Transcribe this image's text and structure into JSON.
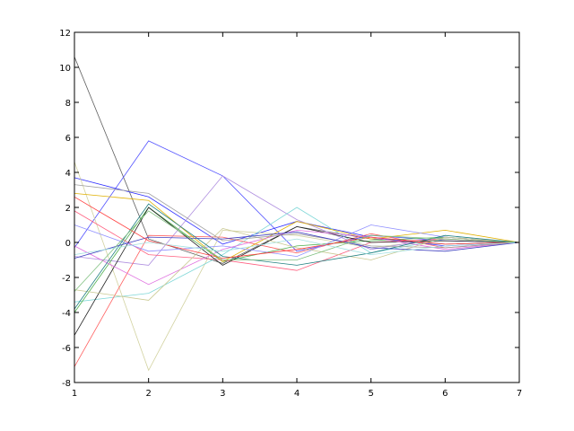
{
  "chart_data": {
    "type": "line",
    "title": "",
    "xlabel": "",
    "ylabel": "",
    "x": [
      1,
      2,
      3,
      4,
      5,
      6,
      7
    ],
    "xlim": [
      1,
      7
    ],
    "ylim": [
      -8,
      12
    ],
    "xticks": [
      "1",
      "2",
      "3",
      "4",
      "5",
      "6",
      "7"
    ],
    "yticks": [
      "-8",
      "-6",
      "-4",
      "-2",
      "0",
      "2",
      "4",
      "6",
      "8",
      "10",
      "12"
    ],
    "grid": false,
    "legend": "none",
    "series": [
      {
        "color": "#606060",
        "values": [
          10.6,
          0.2,
          -1.2,
          0.9,
          0.2,
          -0.1,
          0
        ]
      },
      {
        "color": "#5050ff",
        "values": [
          -0.3,
          5.8,
          3.8,
          -0.5,
          0.4,
          0.1,
          0
        ]
      },
      {
        "color": "#3030ff",
        "values": [
          3.7,
          2.6,
          -0.1,
          1.2,
          0.3,
          -0.2,
          0
        ]
      },
      {
        "color": "#d2d2a0",
        "values": [
          4.6,
          -7.3,
          0.7,
          0.4,
          -0.3,
          0.2,
          0
        ]
      },
      {
        "color": "#b090e0",
        "values": [
          -0.8,
          -1.3,
          3.8,
          1.3,
          -0.4,
          0.3,
          0
        ]
      },
      {
        "color": "#80d8d8",
        "values": [
          -3.4,
          -2.9,
          -0.7,
          2.0,
          -0.6,
          0.2,
          0
        ]
      },
      {
        "color": "#ff6060",
        "values": [
          -7.1,
          0.4,
          0.3,
          -0.6,
          0.5,
          -0.3,
          0
        ]
      },
      {
        "color": "#50b050",
        "values": [
          -4.0,
          2.0,
          -1.1,
          -0.2,
          0.1,
          0.3,
          0
        ]
      },
      {
        "color": "#e0b000",
        "values": [
          2.8,
          2.4,
          -1.1,
          1.2,
          0.2,
          0.7,
          0
        ]
      },
      {
        "color": "#ff6080",
        "values": [
          1.8,
          -0.7,
          -1.0,
          -1.6,
          0.0,
          0.2,
          0
        ]
      },
      {
        "color": "#202020",
        "values": [
          -5.3,
          2.0,
          -1.3,
          0.9,
          0.0,
          0.1,
          0
        ]
      },
      {
        "color": "#9090ff",
        "values": [
          1.0,
          -0.5,
          -0.2,
          -0.8,
          1.0,
          0.3,
          0
        ]
      },
      {
        "color": "#e070e0",
        "values": [
          -0.2,
          -2.4,
          -0.4,
          0.7,
          0.3,
          -0.4,
          0
        ]
      },
      {
        "color": "#c8c890",
        "values": [
          -2.7,
          -3.3,
          0.8,
          -0.3,
          -1.0,
          0.3,
          0
        ]
      },
      {
        "color": "#208080",
        "values": [
          -3.8,
          2.2,
          -0.8,
          -1.3,
          -0.6,
          0.4,
          0
        ]
      },
      {
        "color": "#a0a0a0",
        "values": [
          3.3,
          2.8,
          0.1,
          0.5,
          -0.2,
          -0.3,
          0
        ]
      },
      {
        "color": "#4040c0",
        "values": [
          -0.9,
          0.3,
          0.2,
          0.6,
          -0.3,
          -0.5,
          0
        ]
      },
      {
        "color": "#ff4040",
        "values": [
          2.6,
          0.1,
          -0.9,
          -0.4,
          0.3,
          -0.1,
          0
        ]
      },
      {
        "color": "#80c080",
        "values": [
          -2.8,
          1.8,
          -1.0,
          -1.0,
          0.4,
          0.2,
          0
        ]
      },
      {
        "color": "#a0e0e0",
        "values": [
          -0.7,
          0.0,
          -0.5,
          0.2,
          -0.7,
          -0.2,
          0
        ]
      }
    ]
  }
}
